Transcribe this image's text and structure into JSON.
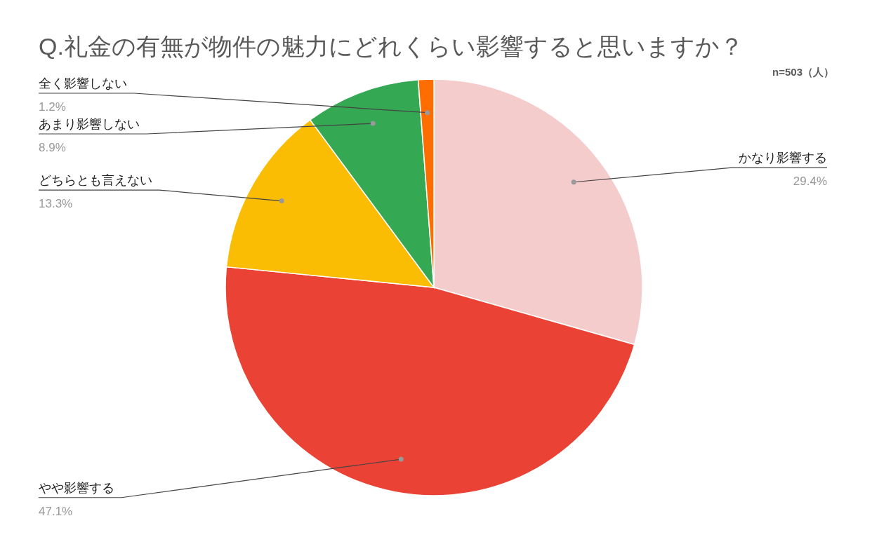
{
  "chart_data": {
    "type": "pie",
    "title": "Q.礼金の有無が物件の魅力にどれくらい影響すると思いますか？",
    "annotations": [
      "n=503（人）"
    ],
    "categories": [
      "かなり影響する",
      "やや影響する",
      "どちらとも言えない",
      "あまり影響しない",
      "全く影響しない"
    ],
    "values": [
      29.4,
      47.1,
      13.3,
      8.9,
      1.2
    ],
    "colors": [
      "#f4cccc",
      "#ea4335",
      "#fbbc04",
      "#34a853",
      "#ff6d01"
    ],
    "value_labels": [
      "29.4%",
      "47.1%",
      "13.3%",
      "8.9%",
      "1.2%"
    ]
  }
}
